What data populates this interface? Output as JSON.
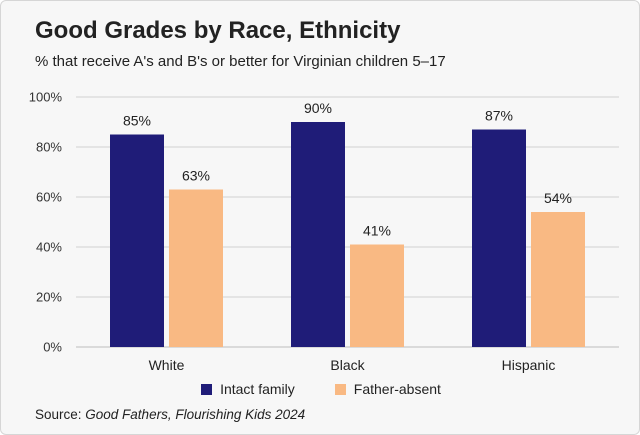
{
  "title": "Good Grades by Race, Ethnicity",
  "subtitle": "% that receive A's and B's or better for Virginian children 5–17",
  "source": {
    "prefix": "Source: ",
    "work": "Good Fathers, Flourishing Kids 2024"
  },
  "colors": {
    "intact": "#1f1c78",
    "absent": "#f9b983",
    "grid": "#d2d2d2"
  },
  "chart_data": {
    "type": "bar",
    "title": "Good Grades by Race, Ethnicity",
    "xlabel": "",
    "ylabel": "",
    "ylim": [
      0,
      100
    ],
    "yticks": [
      "0%",
      "20%",
      "40%",
      "60%",
      "80%",
      "100%"
    ],
    "ytick_values": [
      0,
      20,
      40,
      60,
      80,
      100
    ],
    "categories": [
      "White",
      "Black",
      "Hispanic"
    ],
    "series": [
      {
        "name": "Intact family",
        "values": [
          85,
          90,
          87
        ],
        "labels": [
          "85%",
          "90%",
          "87%"
        ]
      },
      {
        "name": "Father-absent",
        "values": [
          63,
          41,
          54
        ],
        "labels": [
          "63%",
          "41%",
          "54%"
        ]
      }
    ],
    "legend": "bottom"
  }
}
